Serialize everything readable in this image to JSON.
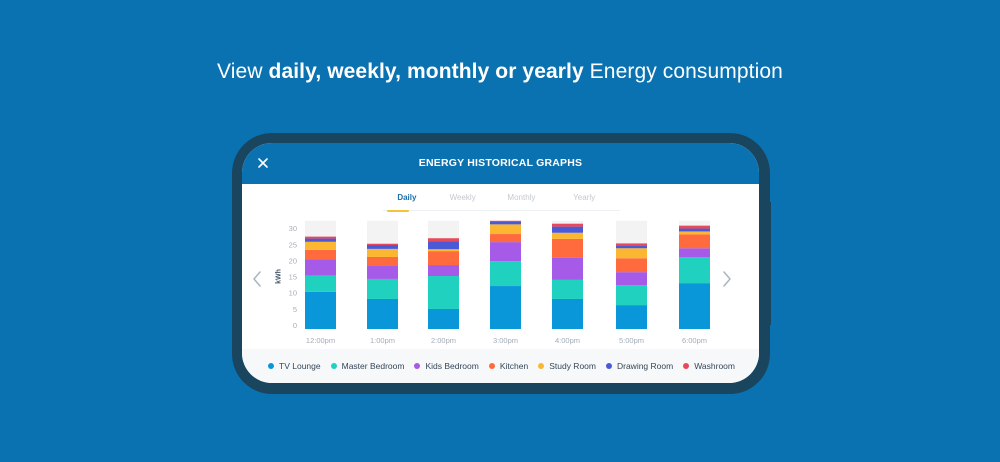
{
  "headline": {
    "prefix": "View ",
    "bold": "daily, weekly, monthly or yearly",
    "suffix": " Energy consumption"
  },
  "app": {
    "title": "ENERGY HISTORICAL GRAPHS",
    "close_icon": "close-icon",
    "prev_icon": "chevron-left-icon",
    "next_icon": "chevron-right-icon"
  },
  "tabs": [
    {
      "label": "Daily",
      "active": true
    },
    {
      "label": "Weekly",
      "active": false
    },
    {
      "label": "Monthly",
      "active": false
    },
    {
      "label": "Yearly",
      "active": false
    }
  ],
  "colors": {
    "background": "#0a72b0",
    "frame": "#1a455f",
    "accent_tab": "#f6c531",
    "track": "#f3f3f4"
  },
  "chart_data": {
    "type": "bar",
    "stacked": true,
    "title": "",
    "xlabel": "",
    "ylabel": "kWh",
    "ylim": [
      0,
      33.5
    ],
    "yticks": [
      0,
      5,
      10,
      15,
      20,
      25,
      30
    ],
    "categories": [
      "12:00pm",
      "1:00pm",
      "2:00pm",
      "3:00pm",
      "4:00pm",
      "5:00pm",
      "6:00pm"
    ],
    "series": [
      {
        "name": "TV Lounge",
        "color": "#0a97d9",
        "values": [
          11.5,
          9.3,
          6.2,
          13.3,
          9.3,
          7.4,
          14.2
        ]
      },
      {
        "name": "Master Bedroom",
        "color": "#1fd1be",
        "values": [
          5.0,
          6.2,
          10.2,
          7.7,
          5.9,
          6.2,
          8.0
        ]
      },
      {
        "name": "Kids Bedroom",
        "color": "#a55ae8",
        "values": [
          5.0,
          4.0,
          3.4,
          5.9,
          6.8,
          4.0,
          2.8
        ]
      },
      {
        "name": "Kitchen",
        "color": "#ff6b3d",
        "values": [
          3.0,
          2.8,
          4.3,
          2.5,
          5.9,
          4.3,
          4.3
        ]
      },
      {
        "name": "Study Room",
        "color": "#fbb731",
        "values": [
          2.5,
          2.5,
          0.6,
          3.0,
          1.9,
          3.1,
          0.9
        ]
      },
      {
        "name": "Drawing Room",
        "color": "#4a5ad6",
        "values": [
          1.0,
          1.2,
          2.5,
          0.9,
          1.9,
          0.9,
          0.9
        ]
      },
      {
        "name": "Washroom",
        "color": "#e8495a",
        "values": [
          0.6,
          0.4,
          0.9,
          0.2,
          0.9,
          0.6,
          0.9
        ]
      }
    ],
    "grid": false,
    "legend": "bottom"
  }
}
